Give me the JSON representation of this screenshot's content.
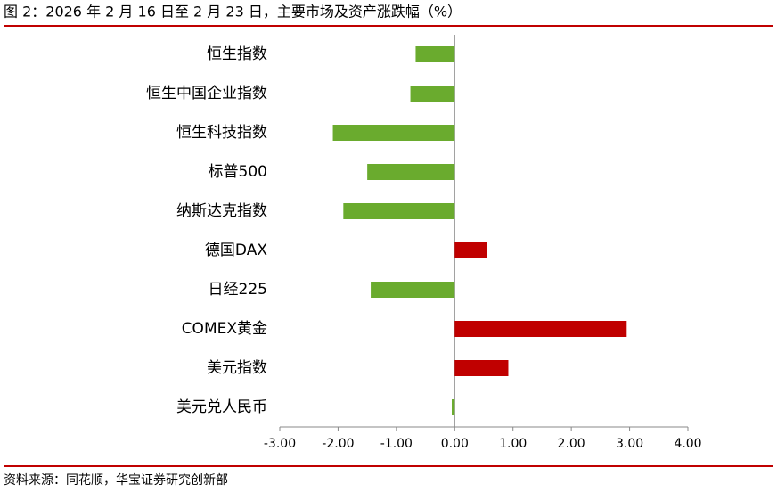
{
  "chart_data": {
    "type": "bar",
    "orientation": "horizontal",
    "title": "图 2：2026 年 2 月 16 日至 2 月 23 日，主要市场及资产涨跌幅（%）",
    "source": "资料来源：同花顺，华宝证券研究创新部",
    "categories": [
      "恒生指数",
      "恒生中国企业指数",
      "恒生科技指数",
      "标普500",
      "纳斯达克指数",
      "德国DAX",
      "日经225",
      "COMEX黄金",
      "美元指数",
      "美元兑人民币"
    ],
    "values": [
      -0.67,
      -0.76,
      -2.09,
      -1.5,
      -1.91,
      0.55,
      -1.44,
      2.95,
      0.92,
      -0.05
    ],
    "positive_color": "#c00000",
    "negative_color": "#6aab2e",
    "xlim": [
      -3,
      4
    ],
    "xticks": [
      {
        "value": -3,
        "label": "-3.00"
      },
      {
        "value": -2,
        "label": "-2.00"
      },
      {
        "value": -1,
        "label": "-1.00"
      },
      {
        "value": 0,
        "label": "0.00"
      },
      {
        "value": 1,
        "label": "1.00"
      },
      {
        "value": 2,
        "label": "2.00"
      },
      {
        "value": 3,
        "label": "3.00"
      },
      {
        "value": 4,
        "label": "4.00"
      }
    ],
    "grid": false
  }
}
